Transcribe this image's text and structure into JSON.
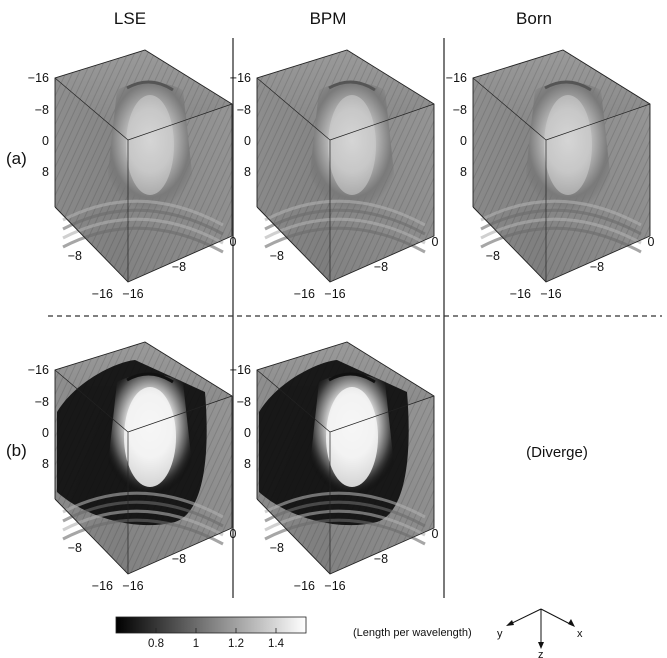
{
  "columns": [
    "LSE",
    "BPM",
    "Born"
  ],
  "rows": [
    {
      "label": "(a)",
      "panels": [
        "LSE",
        "BPM",
        "Born"
      ]
    },
    {
      "label": "(b)",
      "panels": [
        "LSE",
        "BPM"
      ],
      "missing_note": "(Diverge)"
    }
  ],
  "axes": {
    "vertical_ticks": [
      "−16",
      "−8",
      "0",
      "8"
    ],
    "left_bottom_ticks": [
      "−8",
      "−16"
    ],
    "right_bottom_ticks": [
      "0",
      "−8",
      "−16"
    ]
  },
  "colorbar": {
    "ticks": [
      "0.8",
      "1",
      "1.2",
      "1.4"
    ],
    "range": [
      0.6,
      1.55
    ],
    "colors": [
      "#000000",
      "#ffffff"
    ]
  },
  "units_label": "(Length per wavelength)",
  "axis_indicator": {
    "labels": [
      "y",
      "z",
      "x"
    ]
  }
}
